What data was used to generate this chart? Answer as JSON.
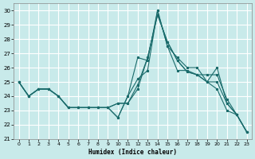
{
  "xlabel": "Humidex (Indice chaleur)",
  "xlim": [
    -0.5,
    23.5
  ],
  "ylim": [
    21,
    30.5
  ],
  "yticks": [
    21,
    22,
    23,
    24,
    25,
    26,
    27,
    28,
    29,
    30
  ],
  "xticks": [
    0,
    1,
    2,
    3,
    4,
    5,
    6,
    7,
    8,
    9,
    10,
    11,
    12,
    13,
    14,
    15,
    16,
    17,
    18,
    19,
    20,
    21,
    22,
    23
  ],
  "background_color": "#c8eaea",
  "grid_color": "#ffffff",
  "line_color": "#1a6b6b",
  "x": [
    0,
    1,
    2,
    3,
    4,
    5,
    6,
    7,
    8,
    9,
    10,
    11,
    12,
    13,
    14,
    15,
    16,
    17,
    18,
    19,
    20,
    21,
    22,
    23
  ],
  "line1": [
    25,
    24,
    24.5,
    24.5,
    24,
    23.2,
    23.2,
    23.2,
    23.2,
    23.2,
    22.5,
    24,
    26.7,
    26.5,
    30,
    27.5,
    26.7,
    26,
    26,
    25,
    26,
    23.5,
    22.7,
    21.5
  ],
  "line2": [
    25,
    24,
    24.5,
    24.5,
    24,
    23.2,
    23.2,
    23.2,
    23.2,
    23.2,
    22.5,
    24,
    25.2,
    25.8,
    30,
    27.5,
    25.8,
    25.8,
    25.5,
    25,
    25,
    23.5,
    22.7,
    21.5
  ],
  "line3": [
    25,
    24,
    24.5,
    24.5,
    24,
    23.2,
    23.2,
    23.2,
    23.2,
    23.2,
    23.5,
    23.5,
    24.8,
    26.7,
    29.7,
    27.8,
    26.5,
    25.7,
    25.5,
    25.5,
    25.5,
    23.8,
    22.7,
    21.5
  ],
  "line4": [
    25,
    24,
    24.5,
    24.5,
    24,
    23.2,
    23.2,
    23.2,
    23.2,
    23.2,
    23.5,
    23.5,
    24.5,
    26.7,
    29.7,
    27.8,
    26.5,
    25.7,
    25.5,
    25,
    24.5,
    23.0,
    22.7,
    21.5
  ]
}
